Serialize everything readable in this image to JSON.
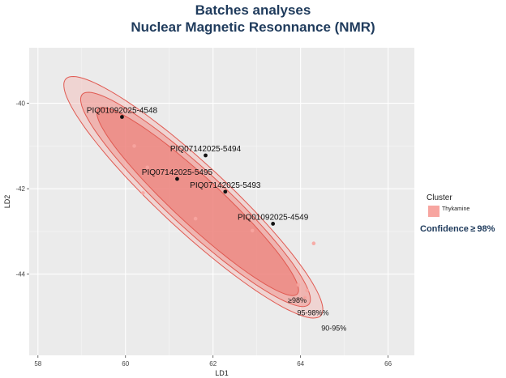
{
  "title_line1": "Batches analyses",
  "title_line2": "Nuclear Magnetic Resonnance (NMR)",
  "confidence_note": "Confidence ≥ 98%",
  "chart_data": {
    "type": "scatter",
    "xlabel": "LD1",
    "ylabel": "LD2",
    "xlim": [
      57.8,
      66.6
    ],
    "ylim": [
      -45.9,
      -38.7
    ],
    "x_ticks": [
      58,
      60,
      62,
      64,
      66
    ],
    "y_ticks": [
      -40,
      -42,
      -44
    ],
    "grid": true,
    "legend": {
      "title": "Cluster",
      "position": "right",
      "entries": [
        {
          "label": "Thykamine",
          "color": "#f7a5a0"
        }
      ]
    },
    "ellipses": [
      {
        "label": "90-95%",
        "center": [
          61.55,
          -42.2
        ],
        "semi_major": 4.02,
        "semi_minor": 0.77,
        "angle_deg": -43.6,
        "color": "#f5b8b4",
        "opacity": 0.45
      },
      {
        "label": "95-98%%",
        "center": [
          61.6,
          -42.25
        ],
        "semi_major": 3.57,
        "semi_minor": 0.66,
        "angle_deg": -43.6,
        "color": "#f0948e",
        "opacity": 0.5
      },
      {
        "label": "≥98%",
        "center": [
          61.65,
          -42.3
        ],
        "semi_major": 3.14,
        "semi_minor": 0.54,
        "angle_deg": -43.6,
        "color": "#eb756e",
        "opacity": 0.55
      }
    ],
    "points": [
      {
        "label": "PIQ01092025-4548",
        "x": 59.92,
        "y": -40.32
      },
      {
        "label": "PIQ07142025-5494",
        "x": 61.83,
        "y": -41.22
      },
      {
        "label": "PIQ07142025-5495",
        "x": 61.18,
        "y": -41.77
      },
      {
        "label": "PIQ07142025-5493",
        "x": 62.28,
        "y": -42.07
      },
      {
        "label": "PIQ01092025-4549",
        "x": 63.37,
        "y": -42.82
      }
    ],
    "faint_points": [
      {
        "x": 60.2,
        "y": -41.0
      },
      {
        "x": 60.5,
        "y": -41.5
      },
      {
        "x": 60.4,
        "y": -42.1
      },
      {
        "x": 61.6,
        "y": -42.7
      },
      {
        "x": 62.9,
        "y": -42.98
      },
      {
        "x": 64.3,
        "y": -43.28
      },
      {
        "x": 63.95,
        "y": -44.25
      },
      {
        "x": 64.15,
        "y": -44.38
      },
      {
        "x": 64.1,
        "y": -44.55
      }
    ]
  }
}
